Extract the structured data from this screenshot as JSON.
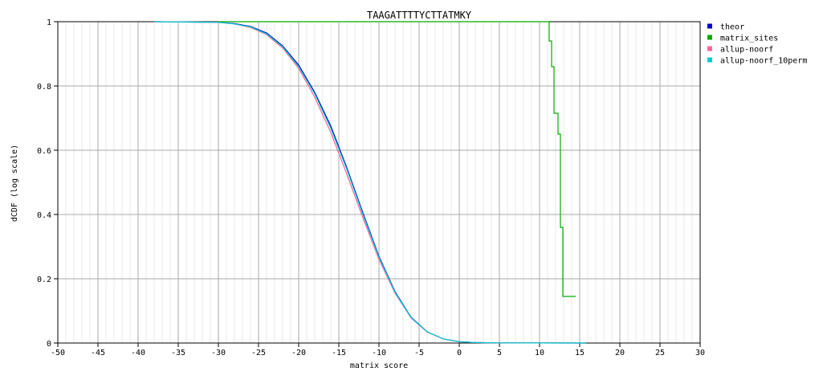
{
  "chart_data": {
    "type": "line",
    "title": "TAAGATTTTYCTTATMKY",
    "xlabel": "matrix score",
    "ylabel": "dCDF (log scale)",
    "xlim": [
      -50,
      30
    ],
    "ylim": [
      0,
      1
    ],
    "x_ticks": [
      -50,
      -45,
      -40,
      -35,
      -30,
      -25,
      -20,
      -15,
      -10,
      -5,
      0,
      5,
      10,
      15,
      20,
      25,
      30
    ],
    "y_ticks": [
      0,
      0.2,
      0.4,
      0.6,
      0.8,
      1
    ],
    "grid": true,
    "legend_position": "top-right",
    "series": [
      {
        "name": "theor",
        "color": "#0000cc",
        "x": [
          -38,
          -30,
          -28,
          -26,
          -24,
          -22,
          -20,
          -18,
          -16,
          -14,
          -12,
          -10,
          -8,
          -6,
          -4,
          -2,
          0,
          2,
          5,
          10,
          15.8
        ],
        "y": [
          1.0,
          0.998,
          0.994,
          0.985,
          0.965,
          0.925,
          0.865,
          0.78,
          0.675,
          0.545,
          0.405,
          0.27,
          0.16,
          0.08,
          0.035,
          0.013,
          0.004,
          0.0015,
          0.0005,
          0.0002,
          0.0
        ]
      },
      {
        "name": "matrix_sites",
        "color": "#00aa00",
        "x": [
          -30,
          11.2,
          11.2,
          11.5,
          11.5,
          11.8,
          11.8,
          12.3,
          12.3,
          12.6,
          12.6,
          12.9,
          12.9,
          14.5
        ],
        "y": [
          1.0,
          1.0,
          0.94,
          0.94,
          0.86,
          0.86,
          0.715,
          0.715,
          0.65,
          0.65,
          0.36,
          0.36,
          0.145,
          0.145
        ]
      },
      {
        "name": "allup-noorf",
        "color": "#ff6699",
        "x": [
          -38,
          -30,
          -28,
          -26,
          -24,
          -22,
          -20,
          -18,
          -16,
          -14,
          -12,
          -10,
          -8,
          -6,
          -4,
          -2,
          0,
          2,
          5,
          10,
          15.8
        ],
        "y": [
          1.0,
          0.998,
          0.993,
          0.982,
          0.96,
          0.918,
          0.855,
          0.765,
          0.655,
          0.525,
          0.39,
          0.26,
          0.155,
          0.078,
          0.034,
          0.013,
          0.004,
          0.0015,
          0.0005,
          0.0002,
          0.0
        ]
      },
      {
        "name": "allup-noorf_10perm",
        "color": "#00cccc",
        "x": [
          -38,
          -30,
          -28,
          -26,
          -24,
          -22,
          -20,
          -18,
          -16,
          -14,
          -12,
          -10,
          -8,
          -6,
          -4,
          -2,
          0,
          2,
          5,
          10,
          15.8
        ],
        "y": [
          1.0,
          0.998,
          0.993,
          0.984,
          0.962,
          0.922,
          0.86,
          0.775,
          0.668,
          0.54,
          0.4,
          0.267,
          0.158,
          0.079,
          0.035,
          0.013,
          0.004,
          0.0015,
          0.0005,
          0.0002,
          0.0
        ]
      }
    ]
  }
}
